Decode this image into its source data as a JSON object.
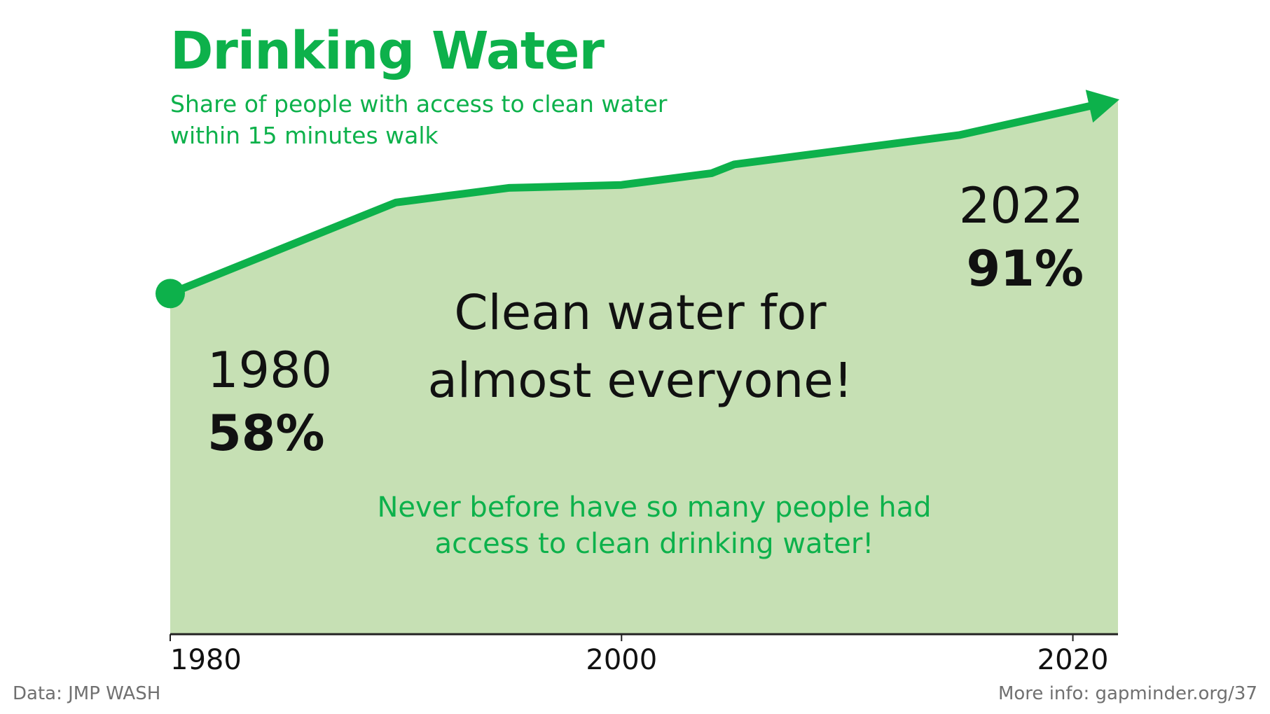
{
  "colors": {
    "accent": "#0db14b",
    "area": "#c6e0b4",
    "axis": "#222222",
    "footer": "#707070"
  },
  "header": {
    "title": "Drinking Water",
    "subtitle": "Share of people with access to clean water within 15 minutes walk"
  },
  "chart_data": {
    "type": "area",
    "x": [
      1980,
      1990,
      1992,
      1993,
      1995,
      2000,
      2001,
      2004,
      2005,
      2010,
      2015,
      2022
    ],
    "y": [
      58,
      73.5,
      74.5,
      75,
      76,
      76.5,
      77,
      78.5,
      80,
      82.5,
      85,
      91
    ],
    "xlim": [
      1980,
      2022
    ],
    "ylim": [
      0,
      100
    ],
    "xticks": [
      "1980",
      "2000",
      "2020"
    ],
    "start": {
      "year": "1980",
      "value": "58%"
    },
    "end": {
      "year": "2022",
      "value": "91%"
    },
    "headline": [
      "Clean water for",
      "almost everyone!"
    ],
    "note": [
      "Never before have so many people had",
      "access to clean drinking water!"
    ]
  },
  "footer": {
    "source": "Data: JMP WASH",
    "more_info": "More info: gapminder.org/37"
  }
}
